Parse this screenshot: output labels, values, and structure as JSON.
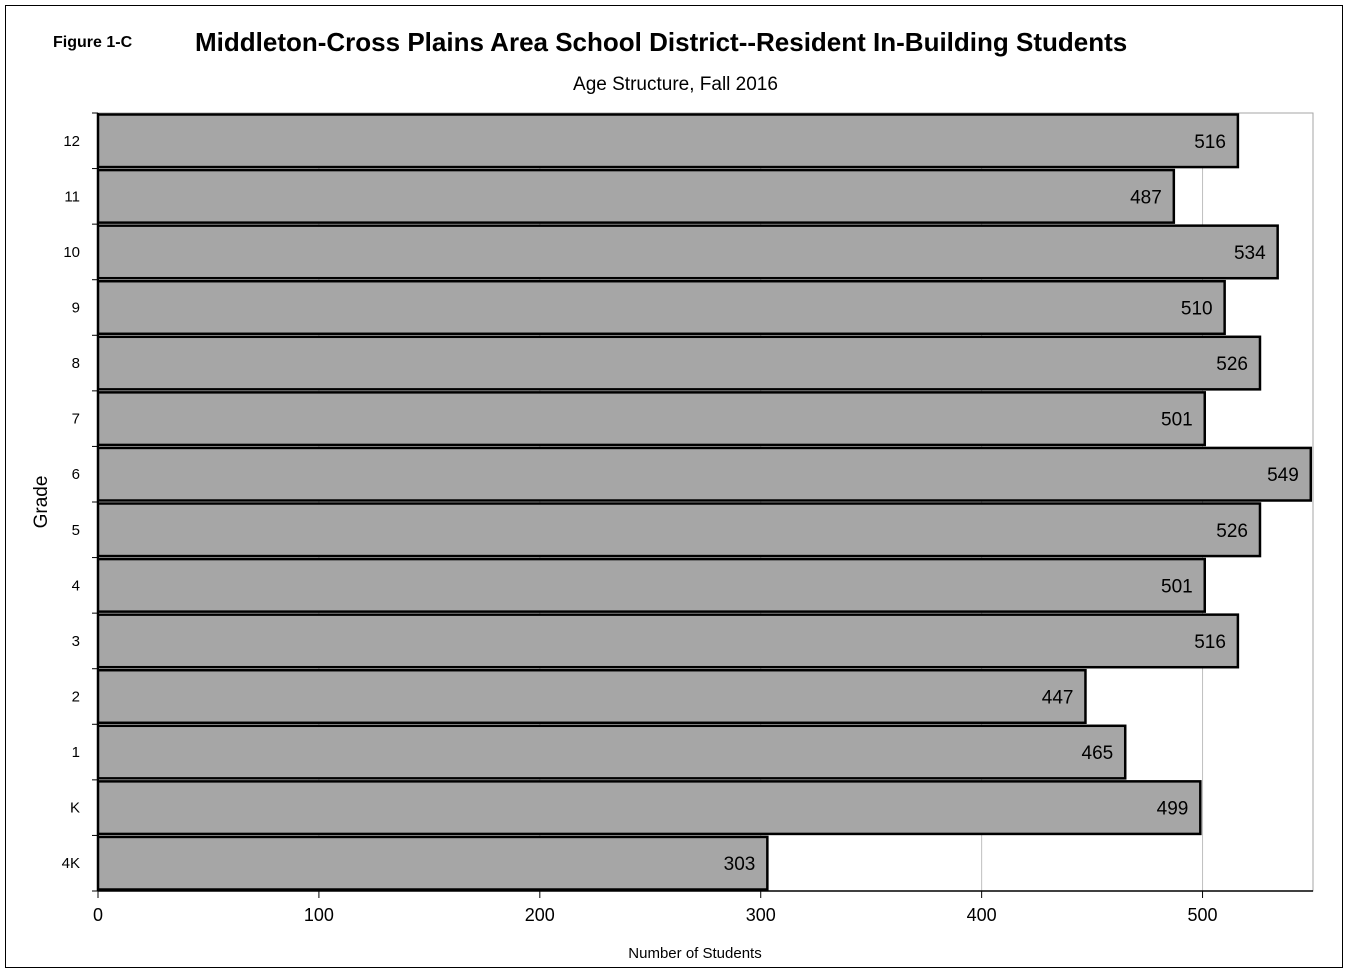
{
  "figure_label": "Figure 1-C",
  "chart_data": {
    "type": "bar",
    "orientation": "horizontal",
    "title": "Middleton-Cross  Plains Area School District--Resident  In-Building Students",
    "subtitle": "Age Structure,  Fall 2016",
    "xlabel": "Number  of Students",
    "ylabel": "Grade",
    "categories": [
      "4K",
      "K",
      "1",
      "2",
      "3",
      "4",
      "5",
      "6",
      "7",
      "8",
      "9",
      "10",
      "11",
      "12"
    ],
    "values": [
      303,
      499,
      465,
      447,
      516,
      501,
      526,
      549,
      501,
      526,
      510,
      534,
      487,
      516
    ],
    "xlim": [
      0,
      550
    ],
    "xticks": [
      0,
      100,
      200,
      300,
      400,
      500
    ],
    "grid": "vertical",
    "data_labels": true,
    "bar_color": "#a6a6a6",
    "bar_edge_color": "#000000"
  }
}
